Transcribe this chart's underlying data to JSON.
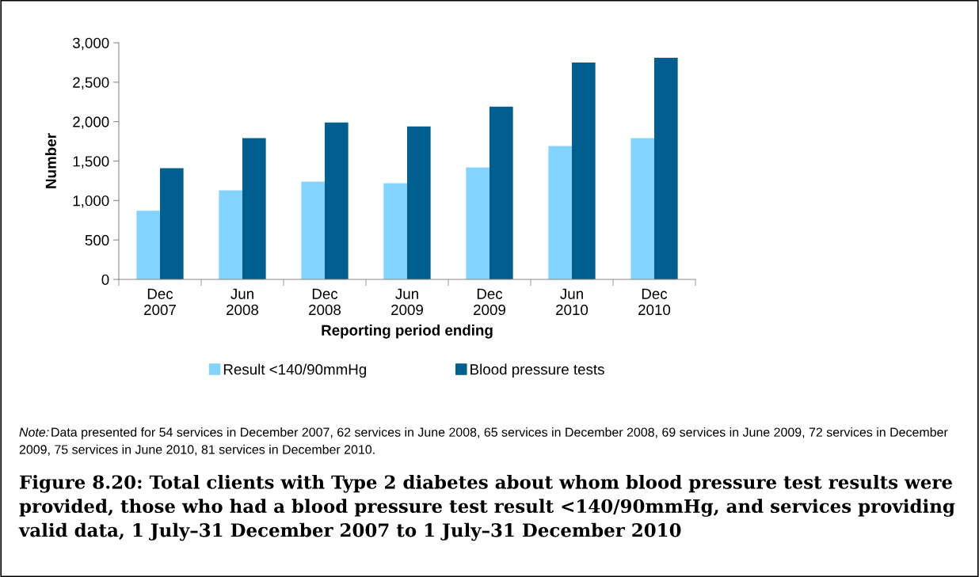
{
  "chart_data": {
    "type": "bar",
    "title": "Figure 8.20: Total clients with Type 2 diabetes about whom blood pressure test results were provided, those who had a blood pressure test result <140/90mmHg, and services providing valid data, 1 July–31 December 2007 to 1 July–31 December 2010",
    "xlabel": "Reporting period ending",
    "ylabel": "Number",
    "categories": [
      "Dec\n2007",
      "Jun\n2008",
      "Dec\n2008",
      "Jun\n2009",
      "Dec\n2009",
      "Jun\n2010",
      "Dec\n2010"
    ],
    "series": [
      {
        "name": "Result <140/90mmHg",
        "color": "#83d3ff",
        "values": [
          870,
          1130,
          1240,
          1220,
          1420,
          1690,
          1790
        ]
      },
      {
        "name": "Blood pressure tests",
        "color": "#005f8e",
        "values": [
          1410,
          1790,
          1990,
          1940,
          2190,
          2750,
          2810
        ]
      }
    ],
    "ylim": [
      0,
      3000
    ],
    "yticks": [
      {
        "value": 0,
        "label": "0"
      },
      {
        "value": 500,
        "label": "500"
      },
      {
        "value": 1000,
        "label": "1,000"
      },
      {
        "value": 1500,
        "label": "1,500"
      },
      {
        "value": 2000,
        "label": "2,000"
      },
      {
        "value": 2500,
        "label": "2,500"
      },
      {
        "value": 3000,
        "label": "3,000"
      }
    ],
    "grid": false,
    "legend": "bottom",
    "annotations": [
      "Note: Data presented for 54 services in December 2007, 62 services in June 2008, 65 services in December 2008, 69 services in June 2009, 72 services in December 2009, 75 services in June 2010, 81 services in December 2010."
    ]
  }
}
